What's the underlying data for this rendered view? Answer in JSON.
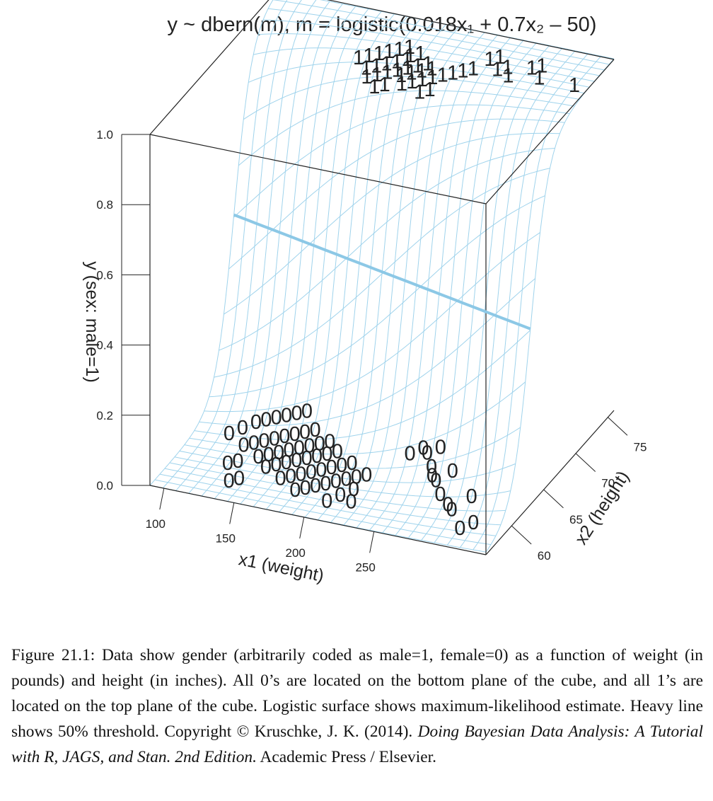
{
  "figure": {
    "title": "y ~ dbern(m), m = logistic(0.018x₁ + 0.7x₂ – 50)",
    "colors": {
      "surface": "#9fd3ec",
      "threshold": "#8cc8e6",
      "box": "#222222",
      "points": "#111111"
    },
    "chart_data": {
      "type": "scatter",
      "x_axis": {
        "label": "x1 (weight)",
        "ticks": [
          "100",
          "150",
          "200",
          "250"
        ]
      },
      "x2_axis": {
        "label": "x2 (height)",
        "ticks": [
          "60",
          "65",
          "70",
          "75"
        ]
      },
      "y_axis": {
        "label": "y (sex: male=1)",
        "ticks": [
          "0.0",
          "0.2",
          "0.4",
          "0.6",
          "0.8",
          "1.0"
        ]
      },
      "model": "m = logistic(0.018*x1 + 0.7*x2 - 50)",
      "threshold": 0.5,
      "point_labels": {
        "male": "1",
        "female": "0"
      },
      "points_y1": [
        [
          175,
          70
        ],
        [
          180,
          70.5
        ],
        [
          185,
          71
        ],
        [
          190,
          71.5
        ],
        [
          195,
          72
        ],
        [
          200,
          72.5
        ],
        [
          205,
          71.5
        ],
        [
          210,
          72
        ],
        [
          185,
          69
        ],
        [
          190,
          69.5
        ],
        [
          195,
          70
        ],
        [
          200,
          70.5
        ],
        [
          205,
          71
        ],
        [
          210,
          70
        ],
        [
          215,
          70.5
        ],
        [
          220,
          71
        ],
        [
          190,
          68
        ],
        [
          195,
          68.5
        ],
        [
          200,
          69
        ],
        [
          205,
          69.5
        ],
        [
          210,
          69
        ],
        [
          215,
          69.5
        ],
        [
          220,
          70
        ],
        [
          225,
          70.5
        ],
        [
          215,
          68
        ],
        [
          220,
          68.5
        ],
        [
          225,
          69
        ],
        [
          230,
          69.5
        ],
        [
          235,
          70
        ],
        [
          240,
          70.5
        ],
        [
          245,
          71
        ],
        [
          250,
          71.5
        ],
        [
          200,
          67
        ],
        [
          205,
          67.5
        ],
        [
          230,
          67.5
        ],
        [
          235,
          68
        ],
        [
          255,
          73
        ],
        [
          260,
          73.5
        ],
        [
          265,
          72
        ],
        [
          270,
          72.5
        ],
        [
          275,
          71.5
        ],
        [
          285,
          73
        ],
        [
          290,
          73.5
        ],
        [
          295,
          72
        ],
        [
          320,
          72
        ]
      ],
      "points_y0": [
        [
          110,
          64
        ],
        [
          115,
          65
        ],
        [
          120,
          66
        ],
        [
          125,
          66.5
        ],
        [
          130,
          67
        ],
        [
          135,
          67.5
        ],
        [
          140,
          68
        ],
        [
          145,
          68.5
        ],
        [
          125,
          63
        ],
        [
          130,
          63.5
        ],
        [
          135,
          64
        ],
        [
          140,
          64.5
        ],
        [
          145,
          65
        ],
        [
          150,
          65.5
        ],
        [
          155,
          66
        ],
        [
          160,
          66.5
        ],
        [
          140,
          62
        ],
        [
          145,
          62.5
        ],
        [
          150,
          63
        ],
        [
          155,
          63.5
        ],
        [
          160,
          64
        ],
        [
          165,
          64.5
        ],
        [
          170,
          65
        ],
        [
          175,
          65.5
        ],
        [
          150,
          61
        ],
        [
          155,
          61.5
        ],
        [
          160,
          62
        ],
        [
          165,
          62.5
        ],
        [
          170,
          63
        ],
        [
          175,
          63.5
        ],
        [
          180,
          64
        ],
        [
          185,
          64.5
        ],
        [
          165,
          60
        ],
        [
          170,
          60.5
        ],
        [
          175,
          61
        ],
        [
          180,
          61.5
        ],
        [
          185,
          62
        ],
        [
          190,
          62.5
        ],
        [
          195,
          63
        ],
        [
          200,
          63.5
        ],
        [
          180,
          59
        ],
        [
          185,
          59.5
        ],
        [
          190,
          60
        ],
        [
          195,
          60.5
        ],
        [
          200,
          61
        ],
        [
          205,
          61.5
        ],
        [
          210,
          62
        ],
        [
          215,
          62.5
        ],
        [
          125,
          60.5
        ],
        [
          130,
          61
        ],
        [
          135,
          58.5
        ],
        [
          140,
          59
        ],
        [
          205,
          58.5
        ],
        [
          210,
          59.5
        ],
        [
          215,
          60.5
        ],
        [
          220,
          59
        ],
        [
          230,
          66
        ],
        [
          235,
          67
        ],
        [
          240,
          66.5
        ],
        [
          245,
          67.5
        ],
        [
          250,
          65
        ],
        [
          255,
          64
        ],
        [
          260,
          63.5
        ],
        [
          265,
          65
        ],
        [
          270,
          62
        ],
        [
          280,
          61
        ],
        [
          285,
          60.5
        ],
        [
          290,
          62.5
        ],
        [
          300,
          58.5
        ],
        [
          305,
          59.5
        ]
      ]
    }
  },
  "caption": {
    "part1": "Figure 21.1: Data show gender (arbitrarily coded as male=1, female=0) as a function of weight (in pounds) and height (in inches). All 0’s are located on the bottom plane of the cube, and all 1’s are located on the top plane of the cube. Logistic surface shows maximum-likelihood estimate. Heavy line shows 50% threshold. Copyright © Kruschke, J. K. (2014). ",
    "book": "Doing Bayesian Data Analysis: A Tutorial with R, JAGS, and Stan. 2nd Edition.",
    "part2": " Academic Press / Elsevier."
  }
}
